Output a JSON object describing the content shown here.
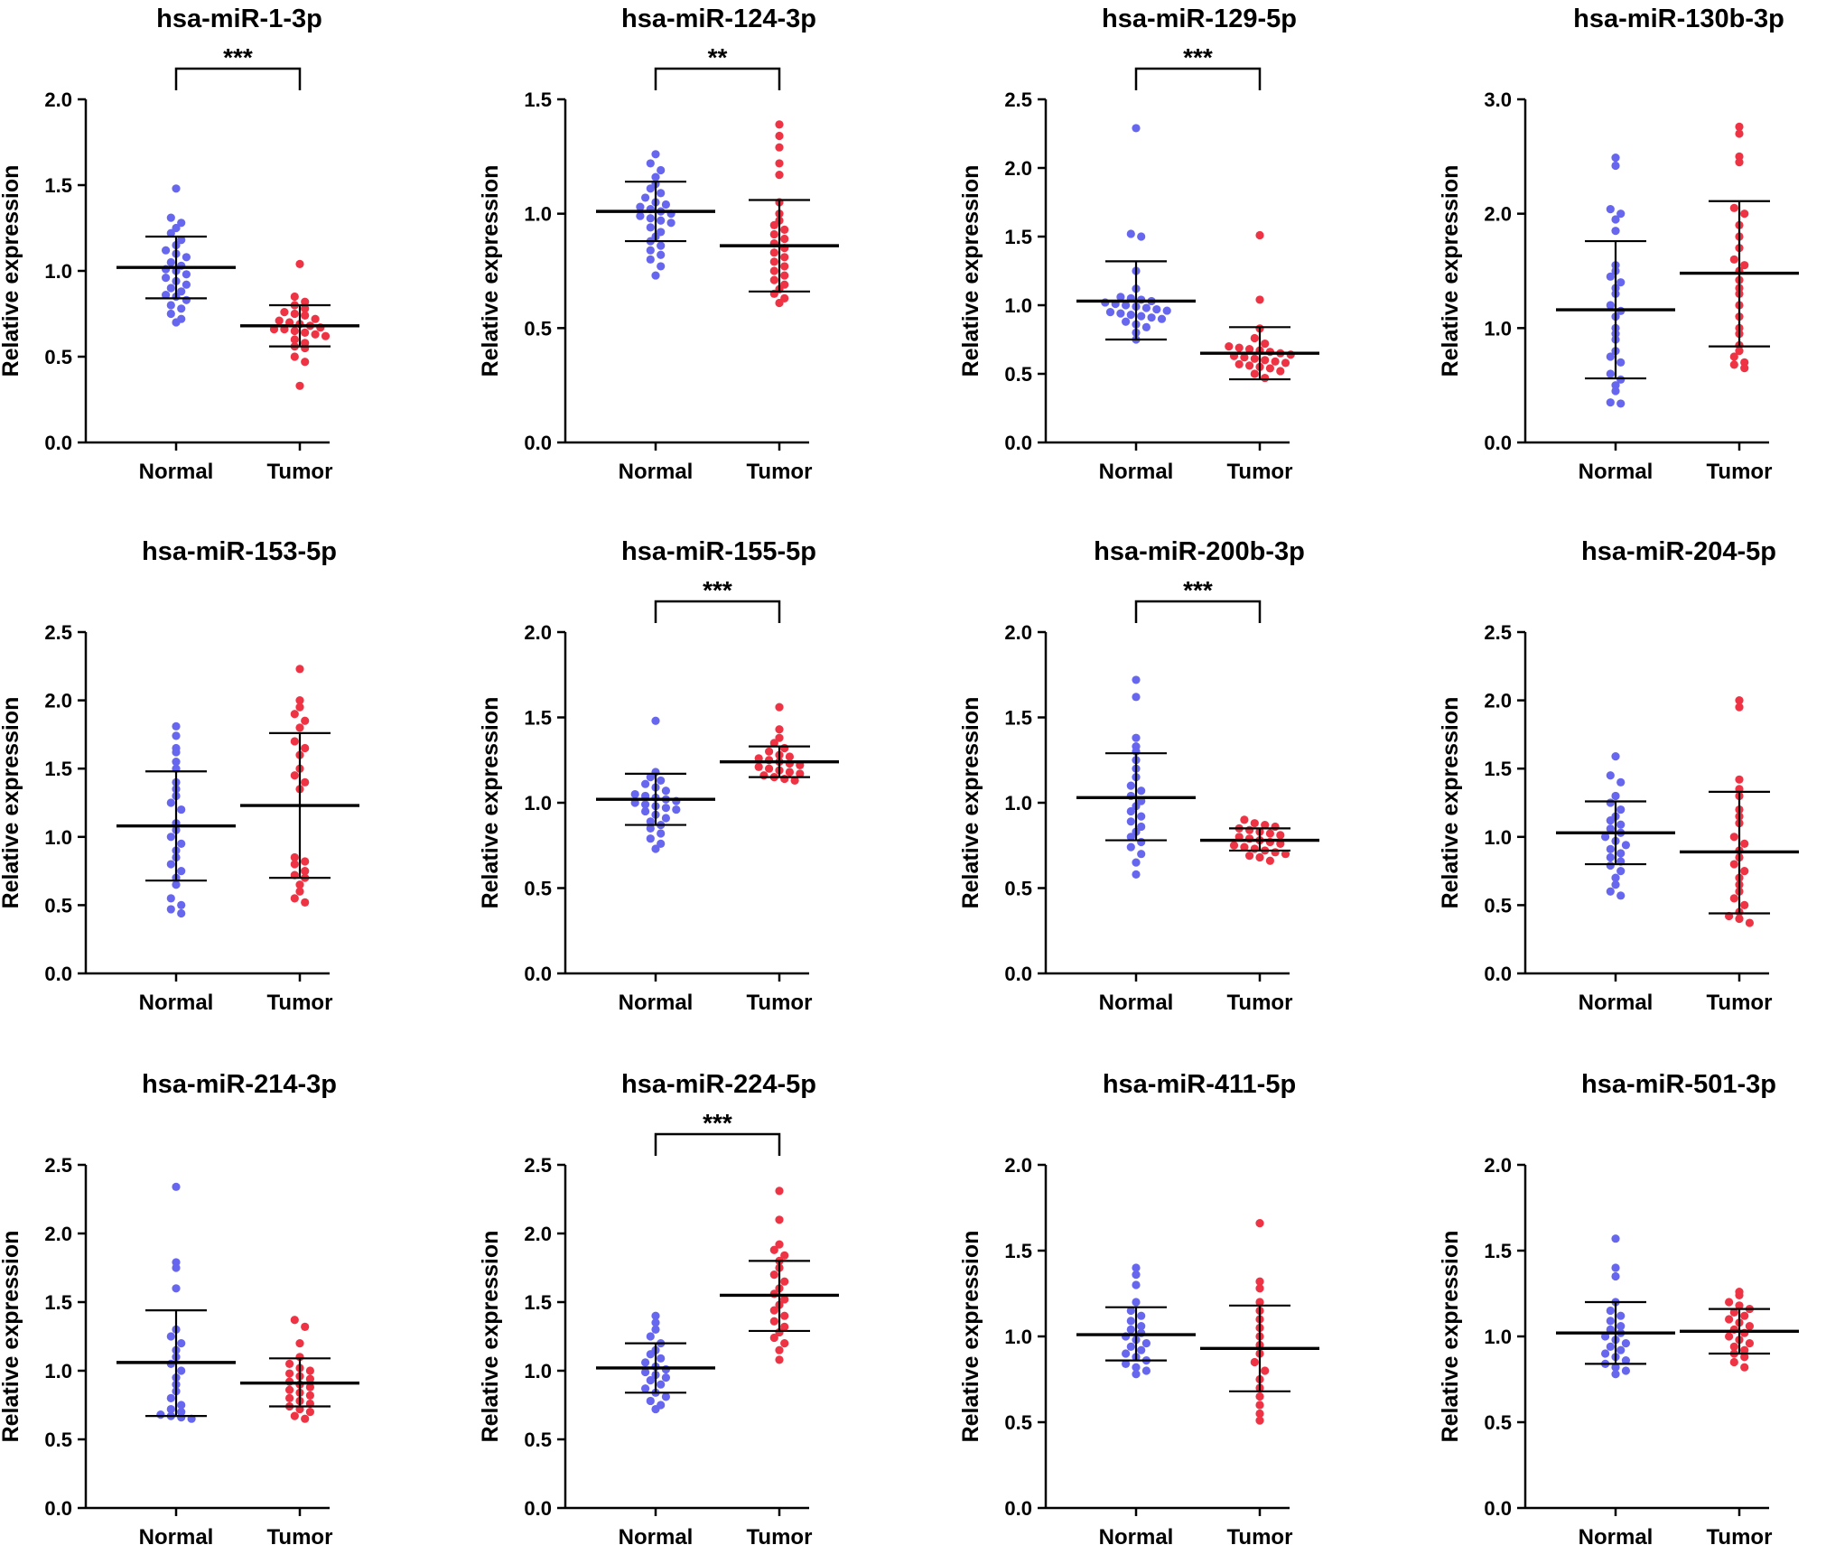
{
  "colors": {
    "normal": "#6666ee",
    "tumor": "#ee3344",
    "axis": "#000000"
  },
  "chart_data": [
    {
      "type": "scatter",
      "title": "hsa-miR-1-3p",
      "ylabel": "Relative expression",
      "xlabel": "",
      "categories": [
        "Normal",
        "Tumor"
      ],
      "ylim": [
        0,
        2.0
      ],
      "ticks": [
        "0.0",
        "0.5",
        "1.0",
        "1.5",
        "2.0"
      ],
      "significance": "***",
      "groups": [
        {
          "name": "Normal",
          "mean": 1.02,
          "sd_low": 0.84,
          "sd_high": 1.2,
          "points": [
            1.48,
            1.31,
            1.28,
            1.25,
            1.22,
            1.18,
            1.15,
            1.12,
            1.1,
            1.08,
            1.05,
            1.03,
            1.01,
            1.0,
            0.98,
            0.96,
            0.94,
            0.92,
            0.9,
            0.88,
            0.86,
            0.85,
            0.83,
            0.8,
            0.78,
            0.75,
            0.72,
            0.7
          ]
        },
        {
          "name": "Tumor",
          "mean": 0.68,
          "sd_low": 0.56,
          "sd_high": 0.8,
          "points": [
            1.04,
            0.85,
            0.82,
            0.8,
            0.78,
            0.76,
            0.75,
            0.74,
            0.72,
            0.71,
            0.7,
            0.69,
            0.68,
            0.67,
            0.66,
            0.66,
            0.65,
            0.64,
            0.63,
            0.62,
            0.6,
            0.58,
            0.56,
            0.55,
            0.5,
            0.47,
            0.33
          ]
        }
      ]
    },
    {
      "type": "scatter",
      "title": "hsa-miR-124-3p",
      "ylabel": "Relative expression",
      "xlabel": "",
      "categories": [
        "Normal",
        "Tumor"
      ],
      "ylim": [
        0,
        1.5
      ],
      "ticks": [
        "0.0",
        "0.5",
        "1.0",
        "1.5"
      ],
      "significance": "**",
      "groups": [
        {
          "name": "Normal",
          "mean": 1.01,
          "sd_low": 0.88,
          "sd_high": 1.14,
          "points": [
            1.26,
            1.22,
            1.19,
            1.16,
            1.13,
            1.11,
            1.09,
            1.07,
            1.05,
            1.04,
            1.03,
            1.02,
            1.01,
            1.0,
            0.99,
            0.98,
            0.97,
            0.96,
            0.94,
            0.92,
            0.9,
            0.88,
            0.86,
            0.84,
            0.82,
            0.8,
            0.77,
            0.73
          ]
        },
        {
          "name": "Tumor",
          "mean": 0.86,
          "sd_low": 0.66,
          "sd_high": 1.06,
          "points": [
            1.39,
            1.34,
            1.29,
            1.22,
            1.17,
            1.05,
            1.0,
            0.97,
            0.95,
            0.93,
            0.91,
            0.89,
            0.87,
            0.85,
            0.83,
            0.81,
            0.79,
            0.77,
            0.75,
            0.73,
            0.71,
            0.69,
            0.67,
            0.65,
            0.63,
            0.61
          ]
        }
      ]
    },
    {
      "type": "scatter",
      "title": "hsa-miR-129-5p",
      "ylabel": "Relative expression",
      "xlabel": "",
      "categories": [
        "Normal",
        "Tumor"
      ],
      "ylim": [
        0,
        2.5
      ],
      "ticks": [
        "0.0",
        "0.5",
        "1.0",
        "1.5",
        "2.0",
        "2.5"
      ],
      "significance": "***",
      "groups": [
        {
          "name": "Normal",
          "mean": 1.03,
          "sd_low": 0.75,
          "sd_high": 1.32,
          "points": [
            2.29,
            1.52,
            1.5,
            1.25,
            1.12,
            1.06,
            1.05,
            1.04,
            1.03,
            1.02,
            1.01,
            1.0,
            0.99,
            0.98,
            0.97,
            0.96,
            0.95,
            0.94,
            0.93,
            0.92,
            0.91,
            0.9,
            0.88,
            0.86,
            0.84,
            0.8,
            0.75
          ]
        },
        {
          "name": "Tumor",
          "mean": 0.65,
          "sd_low": 0.46,
          "sd_high": 0.84,
          "points": [
            1.51,
            1.04,
            0.83,
            0.76,
            0.72,
            0.7,
            0.69,
            0.68,
            0.67,
            0.66,
            0.65,
            0.64,
            0.63,
            0.62,
            0.61,
            0.6,
            0.59,
            0.58,
            0.57,
            0.56,
            0.55,
            0.54,
            0.52,
            0.5,
            0.47
          ]
        }
      ]
    },
    {
      "type": "scatter",
      "title": "hsa-miR-130b-3p",
      "ylabel": "Relative expression",
      "xlabel": "",
      "categories": [
        "Normal",
        "Tumor"
      ],
      "ylim": [
        0,
        3.0
      ],
      "ticks": [
        "0.0",
        "1.0",
        "2.0",
        "3.0"
      ],
      "significance": "",
      "groups": [
        {
          "name": "Normal",
          "mean": 1.16,
          "sd_low": 0.56,
          "sd_high": 1.76,
          "points": [
            2.49,
            2.42,
            2.04,
            2.0,
            1.95,
            1.85,
            1.55,
            1.5,
            1.45,
            1.4,
            1.35,
            1.3,
            1.2,
            1.15,
            1.1,
            1.0,
            0.95,
            0.9,
            0.8,
            0.75,
            0.7,
            0.6,
            0.55,
            0.5,
            0.45,
            0.35,
            0.34
          ]
        },
        {
          "name": "Tumor",
          "mean": 1.48,
          "sd_low": 0.84,
          "sd_high": 2.11,
          "points": [
            2.76,
            2.7,
            2.5,
            2.45,
            2.05,
            2.0,
            1.9,
            1.8,
            1.7,
            1.6,
            1.55,
            1.5,
            1.42,
            1.35,
            1.3,
            1.2,
            1.1,
            1.0,
            0.95,
            0.85,
            0.8,
            0.75,
            0.7,
            0.68,
            0.65
          ]
        }
      ]
    },
    {
      "type": "scatter",
      "title": "hsa-miR-153-5p",
      "ylabel": "Relative expression",
      "xlabel": "",
      "categories": [
        "Normal",
        "Tumor"
      ],
      "ylim": [
        0,
        2.5
      ],
      "ticks": [
        "0.0",
        "0.5",
        "1.0",
        "1.5",
        "2.0",
        "2.5"
      ],
      "significance": "",
      "groups": [
        {
          "name": "Normal",
          "mean": 1.08,
          "sd_low": 0.68,
          "sd_high": 1.48,
          "points": [
            1.81,
            1.74,
            1.65,
            1.62,
            1.55,
            1.5,
            1.4,
            1.35,
            1.3,
            1.25,
            1.2,
            1.1,
            1.05,
            1.0,
            0.95,
            0.9,
            0.85,
            0.8,
            0.75,
            0.7,
            0.65,
            0.55,
            0.5,
            0.47,
            0.44
          ]
        },
        {
          "name": "Tumor",
          "mean": 1.23,
          "sd_low": 0.7,
          "sd_high": 1.76,
          "points": [
            2.23,
            2.0,
            1.95,
            1.9,
            1.85,
            1.8,
            1.7,
            1.65,
            1.6,
            1.5,
            1.45,
            1.4,
            1.35,
            0.85,
            0.82,
            0.8,
            0.75,
            0.72,
            0.7,
            0.65,
            0.6,
            0.55,
            0.52
          ]
        }
      ]
    },
    {
      "type": "scatter",
      "title": "hsa-miR-155-5p",
      "ylabel": "Relative expression",
      "xlabel": "",
      "categories": [
        "Normal",
        "Tumor"
      ],
      "ylim": [
        0,
        2.0
      ],
      "ticks": [
        "0.0",
        "0.5",
        "1.0",
        "1.5",
        "2.0"
      ],
      "significance": "***",
      "groups": [
        {
          "name": "Normal",
          "mean": 1.02,
          "sd_low": 0.87,
          "sd_high": 1.17,
          "points": [
            1.48,
            1.18,
            1.15,
            1.13,
            1.11,
            1.09,
            1.07,
            1.05,
            1.04,
            1.03,
            1.02,
            1.01,
            1.0,
            0.99,
            0.98,
            0.97,
            0.96,
            0.95,
            0.93,
            0.91,
            0.89,
            0.87,
            0.85,
            0.82,
            0.79,
            0.76,
            0.73
          ]
        },
        {
          "name": "Tumor",
          "mean": 1.24,
          "sd_low": 1.15,
          "sd_high": 1.33,
          "points": [
            1.56,
            1.43,
            1.38,
            1.35,
            1.32,
            1.3,
            1.28,
            1.27,
            1.26,
            1.25,
            1.24,
            1.23,
            1.22,
            1.21,
            1.2,
            1.19,
            1.18,
            1.17,
            1.16,
            1.15,
            1.14,
            1.13
          ]
        }
      ]
    },
    {
      "type": "scatter",
      "title": "hsa-miR-200b-3p",
      "ylabel": "Relative expression",
      "xlabel": "",
      "categories": [
        "Normal",
        "Tumor"
      ],
      "ylim": [
        0,
        2.0
      ],
      "ticks": [
        "0.0",
        "0.5",
        "1.0",
        "1.5",
        "2.0"
      ],
      "significance": "***",
      "groups": [
        {
          "name": "Normal",
          "mean": 1.03,
          "sd_low": 0.78,
          "sd_high": 1.29,
          "points": [
            1.72,
            1.62,
            1.38,
            1.33,
            1.3,
            1.25,
            1.2,
            1.15,
            1.1,
            1.07,
            1.04,
            1.01,
            0.98,
            0.95,
            0.92,
            0.89,
            0.86,
            0.83,
            0.8,
            0.77,
            0.74,
            0.7,
            0.65,
            0.58
          ]
        },
        {
          "name": "Tumor",
          "mean": 0.78,
          "sd_low": 0.72,
          "sd_high": 0.85,
          "points": [
            0.9,
            0.88,
            0.87,
            0.86,
            0.85,
            0.84,
            0.83,
            0.82,
            0.81,
            0.8,
            0.79,
            0.78,
            0.77,
            0.76,
            0.75,
            0.74,
            0.73,
            0.72,
            0.71,
            0.7,
            0.69,
            0.68,
            0.66
          ]
        }
      ]
    },
    {
      "type": "scatter",
      "title": "hsa-miR-204-5p",
      "ylabel": "Relative expression",
      "xlabel": "",
      "categories": [
        "Normal",
        "Tumor"
      ],
      "ylim": [
        0,
        2.5
      ],
      "ticks": [
        "0.0",
        "0.5",
        "1.0",
        "1.5",
        "2.0",
        "2.5"
      ],
      "significance": "",
      "groups": [
        {
          "name": "Normal",
          "mean": 1.03,
          "sd_low": 0.8,
          "sd_high": 1.26,
          "points": [
            1.59,
            1.45,
            1.4,
            1.3,
            1.25,
            1.2,
            1.15,
            1.12,
            1.09,
            1.06,
            1.03,
            1.0,
            0.97,
            0.94,
            0.91,
            0.88,
            0.85,
            0.82,
            0.79,
            0.75,
            0.7,
            0.65,
            0.6,
            0.57
          ]
        },
        {
          "name": "Tumor",
          "mean": 0.89,
          "sd_low": 0.44,
          "sd_high": 1.33,
          "points": [
            2.0,
            1.95,
            1.42,
            1.35,
            1.3,
            1.2,
            1.15,
            1.1,
            1.0,
            0.95,
            0.9,
            0.85,
            0.8,
            0.75,
            0.7,
            0.65,
            0.6,
            0.55,
            0.5,
            0.45,
            0.42,
            0.4,
            0.37
          ]
        }
      ]
    },
    {
      "type": "scatter",
      "title": "hsa-miR-214-3p",
      "ylabel": "Relative expression",
      "xlabel": "",
      "categories": [
        "Normal",
        "Tumor"
      ],
      "ylim": [
        0,
        2.5
      ],
      "ticks": [
        "0.0",
        "0.5",
        "1.0",
        "1.5",
        "2.0",
        "2.5"
      ],
      "significance": "",
      "groups": [
        {
          "name": "Normal",
          "mean": 1.06,
          "sd_low": 0.67,
          "sd_high": 1.44,
          "points": [
            2.34,
            1.79,
            1.75,
            1.6,
            1.3,
            1.25,
            1.2,
            1.15,
            1.1,
            1.05,
            1.0,
            0.95,
            0.9,
            0.85,
            0.8,
            0.75,
            0.72,
            0.7,
            0.68,
            0.67,
            0.66,
            0.65
          ]
        },
        {
          "name": "Tumor",
          "mean": 0.91,
          "sd_low": 0.74,
          "sd_high": 1.09,
          "points": [
            1.37,
            1.32,
            1.2,
            1.1,
            1.05,
            1.02,
            1.0,
            0.98,
            0.96,
            0.94,
            0.92,
            0.9,
            0.88,
            0.86,
            0.84,
            0.82,
            0.8,
            0.78,
            0.76,
            0.74,
            0.72,
            0.7,
            0.67,
            0.65
          ]
        }
      ]
    },
    {
      "type": "scatter",
      "title": "hsa-miR-224-5p",
      "ylabel": "Relative expression",
      "xlabel": "",
      "categories": [
        "Normal",
        "Tumor"
      ],
      "ylim": [
        0,
        2.5
      ],
      "ticks": [
        "0.0",
        "0.5",
        "1.0",
        "1.5",
        "2.0",
        "2.5"
      ],
      "significance": "***",
      "groups": [
        {
          "name": "Normal",
          "mean": 1.02,
          "sd_low": 0.84,
          "sd_high": 1.2,
          "points": [
            1.4,
            1.35,
            1.3,
            1.25,
            1.2,
            1.15,
            1.12,
            1.09,
            1.06,
            1.03,
            1.01,
            0.99,
            0.97,
            0.95,
            0.93,
            0.9,
            0.87,
            0.84,
            0.81,
            0.78,
            0.75,
            0.72
          ]
        },
        {
          "name": "Tumor",
          "mean": 1.55,
          "sd_low": 1.29,
          "sd_high": 1.8,
          "points": [
            2.31,
            2.1,
            1.92,
            1.88,
            1.84,
            1.8,
            1.75,
            1.7,
            1.65,
            1.6,
            1.56,
            1.52,
            1.48,
            1.44,
            1.4,
            1.36,
            1.32,
            1.28,
            1.24,
            1.2,
            1.15,
            1.08
          ]
        }
      ]
    },
    {
      "type": "scatter",
      "title": "hsa-miR-411-5p",
      "ylabel": "Relative expression",
      "xlabel": "",
      "categories": [
        "Normal",
        "Tumor"
      ],
      "ylim": [
        0,
        2.0
      ],
      "ticks": [
        "0.0",
        "0.5",
        "1.0",
        "1.5",
        "2.0"
      ],
      "significance": "",
      "groups": [
        {
          "name": "Normal",
          "mean": 1.01,
          "sd_low": 0.86,
          "sd_high": 1.17,
          "points": [
            1.4,
            1.36,
            1.3,
            1.2,
            1.15,
            1.12,
            1.09,
            1.06,
            1.04,
            1.02,
            1.0,
            0.98,
            0.96,
            0.94,
            0.92,
            0.9,
            0.88,
            0.86,
            0.84,
            0.82,
            0.8,
            0.78
          ]
        },
        {
          "name": "Tumor",
          "mean": 0.93,
          "sd_low": 0.68,
          "sd_high": 1.18,
          "points": [
            1.66,
            1.32,
            1.28,
            1.2,
            1.15,
            1.1,
            1.05,
            1.0,
            0.95,
            0.9,
            0.85,
            0.8,
            0.75,
            0.7,
            0.65,
            0.6,
            0.55,
            0.51
          ]
        }
      ]
    },
    {
      "type": "scatter",
      "title": "hsa-miR-501-3p",
      "ylabel": "Relative expression",
      "xlabel": "",
      "categories": [
        "Normal",
        "Tumor"
      ],
      "ylim": [
        0,
        2.0
      ],
      "ticks": [
        "0.0",
        "0.5",
        "1.0",
        "1.5",
        "2.0"
      ],
      "significance": "",
      "groups": [
        {
          "name": "Normal",
          "mean": 1.02,
          "sd_low": 0.84,
          "sd_high": 1.2,
          "points": [
            1.57,
            1.4,
            1.35,
            1.2,
            1.15,
            1.12,
            1.09,
            1.06,
            1.04,
            1.02,
            1.0,
            0.98,
            0.96,
            0.94,
            0.92,
            0.9,
            0.88,
            0.86,
            0.84,
            0.82,
            0.8,
            0.78
          ]
        },
        {
          "name": "Tumor",
          "mean": 1.03,
          "sd_low": 0.9,
          "sd_high": 1.16,
          "points": [
            1.26,
            1.24,
            1.2,
            1.18,
            1.16,
            1.14,
            1.12,
            1.1,
            1.08,
            1.06,
            1.04,
            1.02,
            1.0,
            0.98,
            0.96,
            0.94,
            0.92,
            0.9,
            0.88,
            0.85,
            0.82
          ]
        }
      ]
    }
  ]
}
